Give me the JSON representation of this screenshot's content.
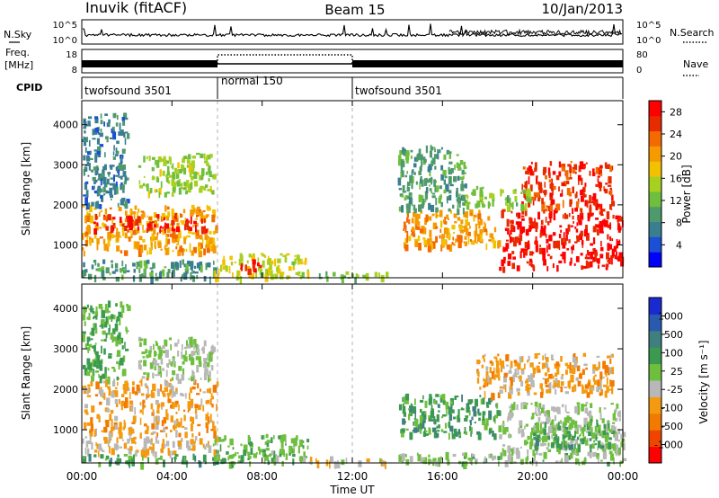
{
  "header": {
    "station": "Inuvik (fitACF)",
    "beam": "Beam 15",
    "date": "10/Jan/2013"
  },
  "panels": {
    "nsky": {
      "left_label": "N.Sky",
      "right_label": "N.Search",
      "left_ticks": [
        "10^5",
        "10^0"
      ],
      "right_ticks": [
        "10^5",
        "10^0"
      ]
    },
    "freq": {
      "left_label_1": "Freq.",
      "left_label_2": "[MHz]",
      "right_label": "Nave",
      "left_ticks": [
        "18",
        "8"
      ],
      "right_ticks": [
        "80",
        "0"
      ]
    },
    "cpid": {
      "label": "CPID",
      "segments": [
        {
          "name": "twofsound 3501",
          "start_hour": 0,
          "end_hour": 6
        },
        {
          "name": "normal 150",
          "start_hour": 6,
          "end_hour": 12
        },
        {
          "name": "twofsound 3501",
          "start_hour": 12,
          "end_hour": 24
        }
      ]
    }
  },
  "chart_data": [
    {
      "type": "heatmap",
      "title": "",
      "xlabel": "Time UT",
      "ylabel": "Slant Range [km]",
      "xlim": [
        0,
        24
      ],
      "ylim": [
        180,
        4600
      ],
      "x_ticks": [
        "00:00",
        "04:00",
        "08:00",
        "12:00",
        "16:00",
        "20:00",
        "00:00"
      ],
      "y_ticks": [
        1000,
        2000,
        3000,
        4000
      ],
      "colorbar": {
        "label": "Power [dB]",
        "ticks": [
          "4",
          "8",
          "12",
          "16",
          "20",
          "24",
          "28"
        ],
        "range": [
          0,
          30
        ],
        "colors": [
          "#0000ff",
          "#1a4fd6",
          "#3a7f8f",
          "#4f9a6c",
          "#6fbf3f",
          "#a8d020",
          "#f2c200",
          "#f59a00",
          "#f36b00",
          "#e82a00",
          "#ff0000"
        ]
      },
      "echo_regions": [
        {
          "t0": 0.0,
          "t1": 6.0,
          "r0": 850,
          "r1": 2000,
          "value": 20
        },
        {
          "t0": 0.5,
          "t1": 5.5,
          "r0": 1400,
          "r1": 1800,
          "value": 27
        },
        {
          "t0": 0.0,
          "t1": 6.0,
          "r0": 200,
          "r1": 650,
          "value": 9
        },
        {
          "t0": 0.0,
          "t1": 2.0,
          "r0": 2000,
          "r1": 4300,
          "value": 7
        },
        {
          "t0": 2.5,
          "t1": 5.8,
          "r0": 2300,
          "r1": 3300,
          "value": 14
        },
        {
          "t0": 5.8,
          "t1": 10.0,
          "r0": 200,
          "r1": 800,
          "value": 16
        },
        {
          "t0": 7.0,
          "t1": 8.0,
          "r0": 400,
          "r1": 650,
          "value": 28
        },
        {
          "t0": 10.0,
          "t1": 13.5,
          "r0": 200,
          "r1": 350,
          "value": 12
        },
        {
          "t0": 14.2,
          "t1": 18.5,
          "r0": 1000,
          "r1": 1900,
          "value": 21
        },
        {
          "t0": 18.5,
          "t1": 24.0,
          "r0": 450,
          "r1": 1900,
          "value": 28
        },
        {
          "t0": 19.5,
          "t1": 23.5,
          "r0": 1900,
          "r1": 3100,
          "value": 26
        },
        {
          "t0": 14.0,
          "t1": 17.0,
          "r0": 1900,
          "r1": 3500,
          "value": 10
        },
        {
          "t0": 17.0,
          "t1": 20.0,
          "r0": 2000,
          "r1": 2500,
          "value": 13
        }
      ]
    },
    {
      "type": "heatmap",
      "title": "",
      "xlabel": "Time UT",
      "ylabel": "Slant Range [km]",
      "xlim": [
        0,
        24
      ],
      "ylim": [
        180,
        4600
      ],
      "x_ticks": [
        "00:00",
        "04:00",
        "08:00",
        "12:00",
        "16:00",
        "20:00",
        "00:00"
      ],
      "y_ticks": [
        1000,
        2000,
        3000,
        4000
      ],
      "colorbar": {
        "label": "Velocity [m s⁻¹]",
        "ticks": [
          "1000",
          "500",
          "100",
          "25",
          "-25",
          "-100",
          "-500",
          "-1000"
        ],
        "range": [
          -1000,
          1000
        ],
        "colors": [
          "#ff0000",
          "#f04500",
          "#f27a00",
          "#f49a10",
          "#b8b8b8",
          "#6fbf3f",
          "#3c9a50",
          "#3f7f80",
          "#2a5ab0",
          "#1a2ad0"
        ]
      },
      "echo_regions": [
        {
          "t0": 0.0,
          "t1": 6.0,
          "r0": 900,
          "r1": 2300,
          "value": -300
        },
        {
          "t0": 0.0,
          "t1": 6.0,
          "r0": 450,
          "r1": 850,
          "value": -200
        },
        {
          "t0": 0.0,
          "t1": 6.0,
          "r0": 200,
          "r1": 420,
          "value": 300
        },
        {
          "t0": 0.0,
          "t1": 2.0,
          "r0": 2300,
          "r1": 4200,
          "value": 200
        },
        {
          "t0": 2.5,
          "t1": 5.8,
          "r0": 2300,
          "r1": 3300,
          "value": 0
        },
        {
          "t0": 5.8,
          "t1": 10.0,
          "r0": 200,
          "r1": 900,
          "value": 150
        },
        {
          "t0": 10.0,
          "t1": 13.5,
          "r0": 200,
          "r1": 350,
          "value": -150
        },
        {
          "t0": 14.0,
          "t1": 18.5,
          "r0": 900,
          "r1": 1900,
          "value": 300
        },
        {
          "t0": 18.5,
          "t1": 24.0,
          "r0": 450,
          "r1": 1700,
          "value": 0
        },
        {
          "t0": 17.5,
          "t1": 23.5,
          "r0": 1900,
          "r1": 2900,
          "value": -300
        },
        {
          "t0": 14.0,
          "t1": 24.0,
          "r0": 200,
          "r1": 450,
          "value": 90
        },
        {
          "t0": 20.0,
          "t1": 23.5,
          "r0": 600,
          "r1": 1300,
          "value": 250
        }
      ]
    }
  ]
}
